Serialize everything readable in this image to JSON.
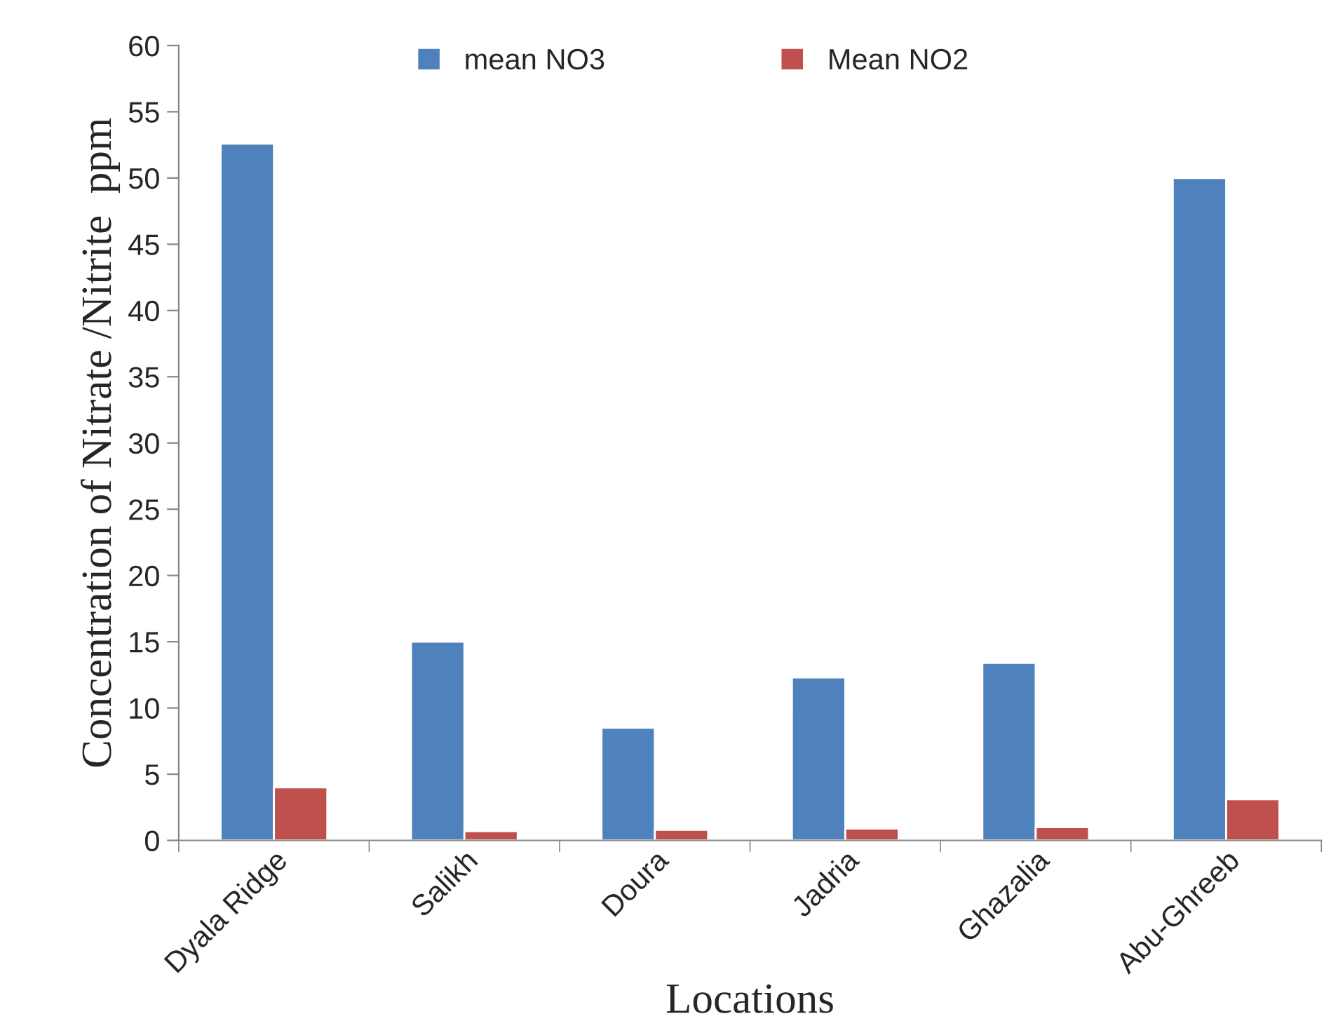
{
  "chart_data": {
    "type": "bar",
    "xlabel": "Locations",
    "ylabel": "Concentration of Nitrate /Nitrite  ppm",
    "categories": [
      "Dyala Ridge",
      "Salikh",
      "Doura",
      "Jadria",
      "Ghazalia",
      "Abu-Ghreeb"
    ],
    "series": [
      {
        "name": "mean NO3",
        "color": "#4f81bd",
        "values": [
          52.6,
          15.0,
          8.5,
          12.3,
          13.4,
          50.0
        ]
      },
      {
        "name": "Mean NO2",
        "color": "#c0504d",
        "values": [
          4.0,
          0.7,
          0.8,
          0.9,
          1.0,
          3.1
        ]
      }
    ],
    "ylim": [
      0,
      60
    ],
    "yticks": [
      0,
      5,
      10,
      15,
      20,
      25,
      30,
      35,
      40,
      45,
      50,
      55,
      60
    ],
    "grid": false,
    "legend": "top"
  }
}
